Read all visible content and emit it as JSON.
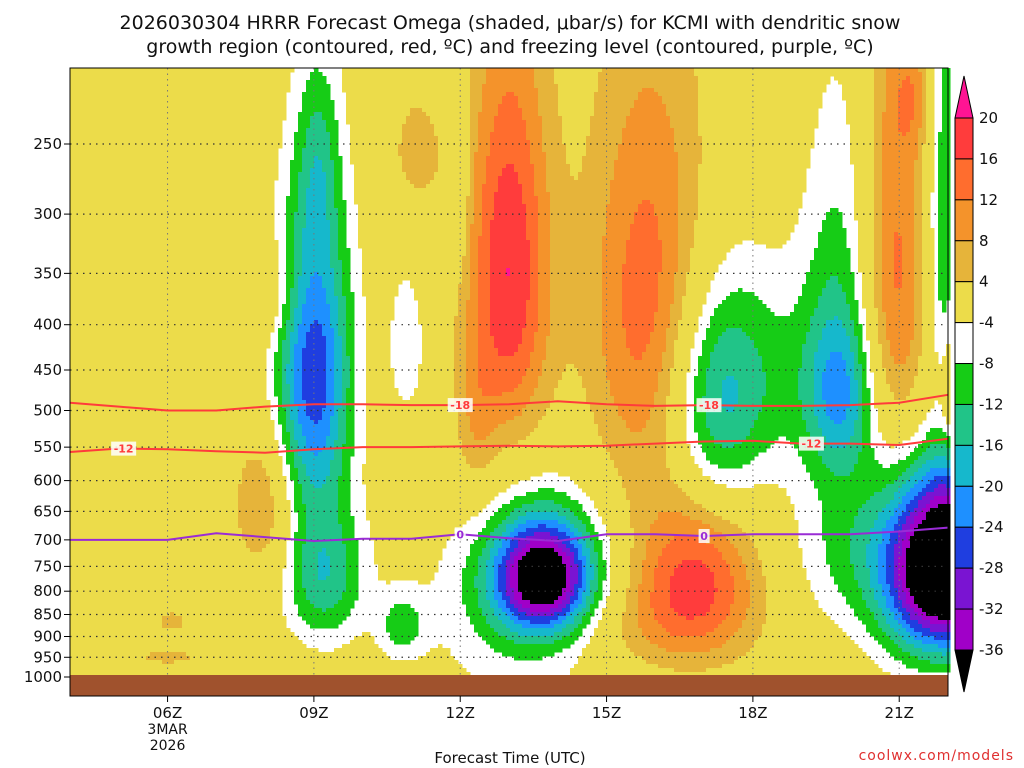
{
  "chart_data": {
    "type": "heatmap",
    "title_line1": "2026030304 HRRR Forecast Omega (shaded, μbar/s) for KCMI with dendritic snow",
    "title_line2": "growth region (contoured, red, ºC) and freezing level (contoured, purple, ºC)",
    "xlabel": "Forecast Time (UTC)",
    "ylabel": "",
    "credit": "coolwx.com/models",
    "x_ticks": [
      {
        "label": "06Z",
        "sub": [
          "3MAR",
          "2026"
        ]
      },
      {
        "label": "09Z",
        "sub": []
      },
      {
        "label": "12Z",
        "sub": []
      },
      {
        "label": "15Z",
        "sub": []
      },
      {
        "label": "18Z",
        "sub": []
      },
      {
        "label": "21Z",
        "sub": []
      }
    ],
    "x_hours": [
      6,
      9,
      12,
      15,
      18,
      21
    ],
    "xlim": [
      4.0,
      22.0
    ],
    "y_ticks": [
      250,
      300,
      350,
      400,
      450,
      500,
      550,
      600,
      650,
      700,
      750,
      800,
      850,
      900,
      950,
      1000
    ],
    "ylim": [
      1000,
      200
    ],
    "yscale": "log",
    "grid": true,
    "colorbar": {
      "labels": [
        "20",
        "16",
        "12",
        "8",
        "4",
        "-4",
        "-8",
        "-12",
        "-16",
        "-20",
        "-24",
        "-28",
        "-32",
        "-36"
      ],
      "bounds": [
        20,
        16,
        12,
        8,
        4,
        -4,
        -8,
        -12,
        -16,
        -20,
        -24,
        -28,
        -32,
        -36
      ],
      "colors": [
        "#ff1493",
        "#ff3c3c",
        "#ff6d2e",
        "#f4932b",
        "#e6b43a",
        "#ecdc4a",
        "#ffffff",
        "#16cc16",
        "#21c488",
        "#16b8cc",
        "#1e90ff",
        "#1f3ee0",
        "#7a14d2",
        "#a000c8",
        "#a8a8a8",
        "#000000"
      ]
    },
    "omega_features": [
      {
        "x": 9.0,
        "p": 450,
        "sx": 0.55,
        "sy": 130,
        "v": -27
      },
      {
        "x": 9.2,
        "p": 770,
        "sx": 0.6,
        "sy": 100,
        "v": -15
      },
      {
        "x": 8.0,
        "p": 370,
        "sx": 0.55,
        "sy": 35,
        "v": 6
      },
      {
        "x": 9.1,
        "p": 260,
        "sx": 0.3,
        "sy": 45,
        "v": -7
      },
      {
        "x": 8.0,
        "p": 640,
        "sx": 0.45,
        "sy": 90,
        "v": 9
      },
      {
        "x": 10.9,
        "p": 420,
        "sx": 0.28,
        "sy": 60,
        "v": -7
      },
      {
        "x": 10.8,
        "p": 875,
        "sx": 0.35,
        "sy": 55,
        "v": -9
      },
      {
        "x": 6.0,
        "p": 950,
        "sx": 0.7,
        "sy": 18,
        "v": 5
      },
      {
        "x": 6.1,
        "p": 865,
        "sx": 0.35,
        "sy": 25,
        "v": 5
      },
      {
        "x": 11.1,
        "p": 255,
        "sx": 0.4,
        "sy": 30,
        "v": 6
      },
      {
        "x": 12.0,
        "p": 270,
        "sx": 0.12,
        "sy": 50,
        "v": -7
      },
      {
        "x": 13.0,
        "p": 350,
        "sx": 0.6,
        "sy": 130,
        "v": 20
      },
      {
        "x": 12.3,
        "p": 520,
        "sx": 0.3,
        "sy": 80,
        "v": 6
      },
      {
        "x": 13.7,
        "p": 770,
        "sx": 0.7,
        "sy": 80,
        "v": -38
      },
      {
        "x": 13.4,
        "p": 830,
        "sx": 1.4,
        "sy": 160,
        "v": -10
      },
      {
        "x": 15.9,
        "p": 390,
        "sx": 0.9,
        "sy": 150,
        "v": 16
      },
      {
        "x": 16.8,
        "p": 770,
        "sx": 0.9,
        "sy": 110,
        "v": 17
      },
      {
        "x": 15.5,
        "p": 880,
        "sx": 1.6,
        "sy": 80,
        "v": 6
      },
      {
        "x": 17.2,
        "p": 500,
        "sx": 0.7,
        "sy": 110,
        "v": -14
      },
      {
        "x": 18.0,
        "p": 450,
        "sx": 1.3,
        "sy": 90,
        "v": -8
      },
      {
        "x": 19.8,
        "p": 330,
        "sx": 0.55,
        "sy": 110,
        "v": -8
      },
      {
        "x": 19.8,
        "p": 480,
        "sx": 0.5,
        "sy": 70,
        "v": -15
      },
      {
        "x": 20.0,
        "p": 700,
        "sx": 0.9,
        "sy": 130,
        "v": -9
      },
      {
        "x": 20.9,
        "p": 360,
        "sx": 0.5,
        "sy": 150,
        "v": 14
      },
      {
        "x": 21.3,
        "p": 220,
        "sx": 0.3,
        "sy": 25,
        "v": 6
      },
      {
        "x": 22.2,
        "p": 490,
        "sx": 0.35,
        "sy": 60,
        "v": 13
      },
      {
        "x": 21.9,
        "p": 320,
        "sx": 0.25,
        "sy": 180,
        "v": -12
      },
      {
        "x": 22.3,
        "p": 750,
        "sx": 0.9,
        "sy": 120,
        "v": -40
      },
      {
        "x": 21.5,
        "p": 760,
        "sx": 0.7,
        "sy": 130,
        "v": -18
      }
    ],
    "contours": [
      {
        "label": "-18",
        "color": "#ff3b3b",
        "label_x": [
          12.0,
          17.1
        ],
        "points": [
          [
            4.0,
            490
          ],
          [
            5.0,
            495
          ],
          [
            6.0,
            500
          ],
          [
            7.0,
            500
          ],
          [
            8.0,
            495
          ],
          [
            9.0,
            492
          ],
          [
            10.0,
            492
          ],
          [
            11.0,
            493
          ],
          [
            12.0,
            493
          ],
          [
            13.0,
            492
          ],
          [
            14.0,
            488
          ],
          [
            15.0,
            492
          ],
          [
            16.0,
            494
          ],
          [
            17.0,
            493
          ],
          [
            18.0,
            494
          ],
          [
            19.0,
            494
          ],
          [
            20.0,
            493
          ],
          [
            21.0,
            490
          ],
          [
            22.0,
            480
          ]
        ]
      },
      {
        "label": "-12",
        "color": "#ff3b3b",
        "label_x": [
          5.1,
          19.2
        ],
        "points": [
          [
            4.0,
            557
          ],
          [
            5.0,
            552
          ],
          [
            6.0,
            553
          ],
          [
            7.0,
            556
          ],
          [
            8.0,
            558
          ],
          [
            9.0,
            553
          ],
          [
            10.0,
            550
          ],
          [
            11.0,
            550
          ],
          [
            12.0,
            549
          ],
          [
            13.0,
            548
          ],
          [
            14.0,
            549
          ],
          [
            15.0,
            548
          ],
          [
            16.0,
            545
          ],
          [
            17.0,
            542
          ],
          [
            18.0,
            541
          ],
          [
            19.0,
            545
          ],
          [
            20.0,
            545
          ],
          [
            21.0,
            547
          ],
          [
            22.0,
            538
          ]
        ]
      },
      {
        "label": "0",
        "color": "#9a2bd6",
        "label_x": [
          12.0,
          17.0
        ],
        "points": [
          [
            4.0,
            700
          ],
          [
            5.0,
            700
          ],
          [
            6.0,
            700
          ],
          [
            7.0,
            688
          ],
          [
            8.0,
            695
          ],
          [
            9.0,
            702
          ],
          [
            10.0,
            698
          ],
          [
            11.0,
            698
          ],
          [
            12.0,
            690
          ],
          [
            13.0,
            697
          ],
          [
            14.0,
            702
          ],
          [
            15.0,
            690
          ],
          [
            16.0,
            690
          ],
          [
            17.0,
            693
          ],
          [
            18.0,
            690
          ],
          [
            19.0,
            690
          ],
          [
            20.0,
            690
          ],
          [
            21.0,
            685
          ],
          [
            22.0,
            678
          ]
        ]
      }
    ],
    "ground": {
      "color": "#a0522d",
      "p": 1000
    }
  }
}
